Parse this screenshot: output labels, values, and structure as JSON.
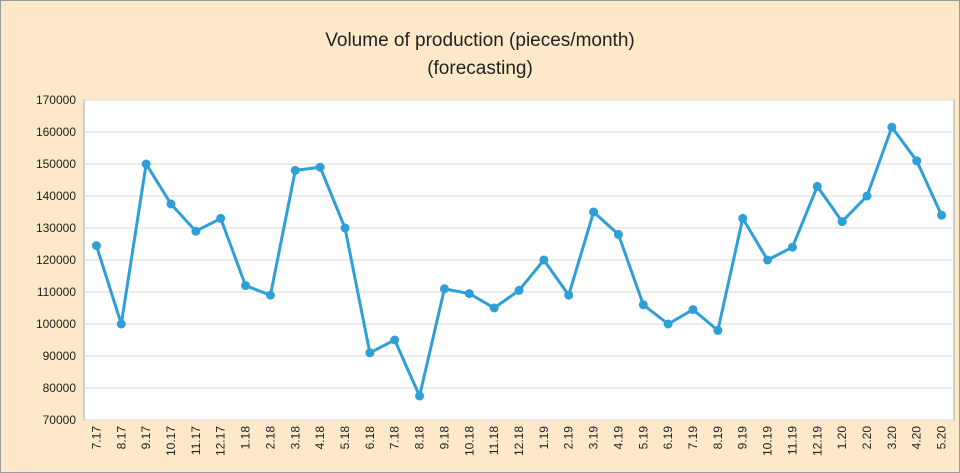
{
  "chart_data": {
    "type": "line",
    "title": "Volume of production (pieces/month)",
    "subtitle": "(forecasting)",
    "categories": [
      "7.17",
      "8.17",
      "9.17",
      "10.17",
      "11.17",
      "12.17",
      "1.18",
      "2.18",
      "3.18",
      "4.18",
      "5.18",
      "6.18",
      "7.18",
      "8.18",
      "9.18",
      "10.18",
      "11.18",
      "12.18",
      "1.19",
      "2.19",
      "3.19",
      "4.19",
      "5.19",
      "6.19",
      "7.19",
      "8.19",
      "9.19",
      "10.19",
      "11.19",
      "12.19",
      "1.20",
      "2.20",
      "3.20",
      "4.20",
      "5.20"
    ],
    "series": [
      {
        "name": "Volume of production",
        "color": "#2f9fd8",
        "values": [
          124500,
          100000,
          150000,
          137500,
          129000,
          133000,
          112000,
          109000,
          148000,
          149000,
          130000,
          91000,
          95000,
          77500,
          111000,
          109500,
          105000,
          110500,
          120000,
          109000,
          135000,
          128000,
          106000,
          100000,
          104500,
          98000,
          133000,
          120000,
          124000,
          143000,
          132000,
          140000,
          161500,
          151000,
          134000
        ]
      }
    ],
    "ylim": [
      70000,
      170000
    ],
    "yticks": [
      70000,
      80000,
      90000,
      100000,
      110000,
      120000,
      130000,
      140000,
      150000,
      160000,
      170000
    ],
    "grid": true
  }
}
